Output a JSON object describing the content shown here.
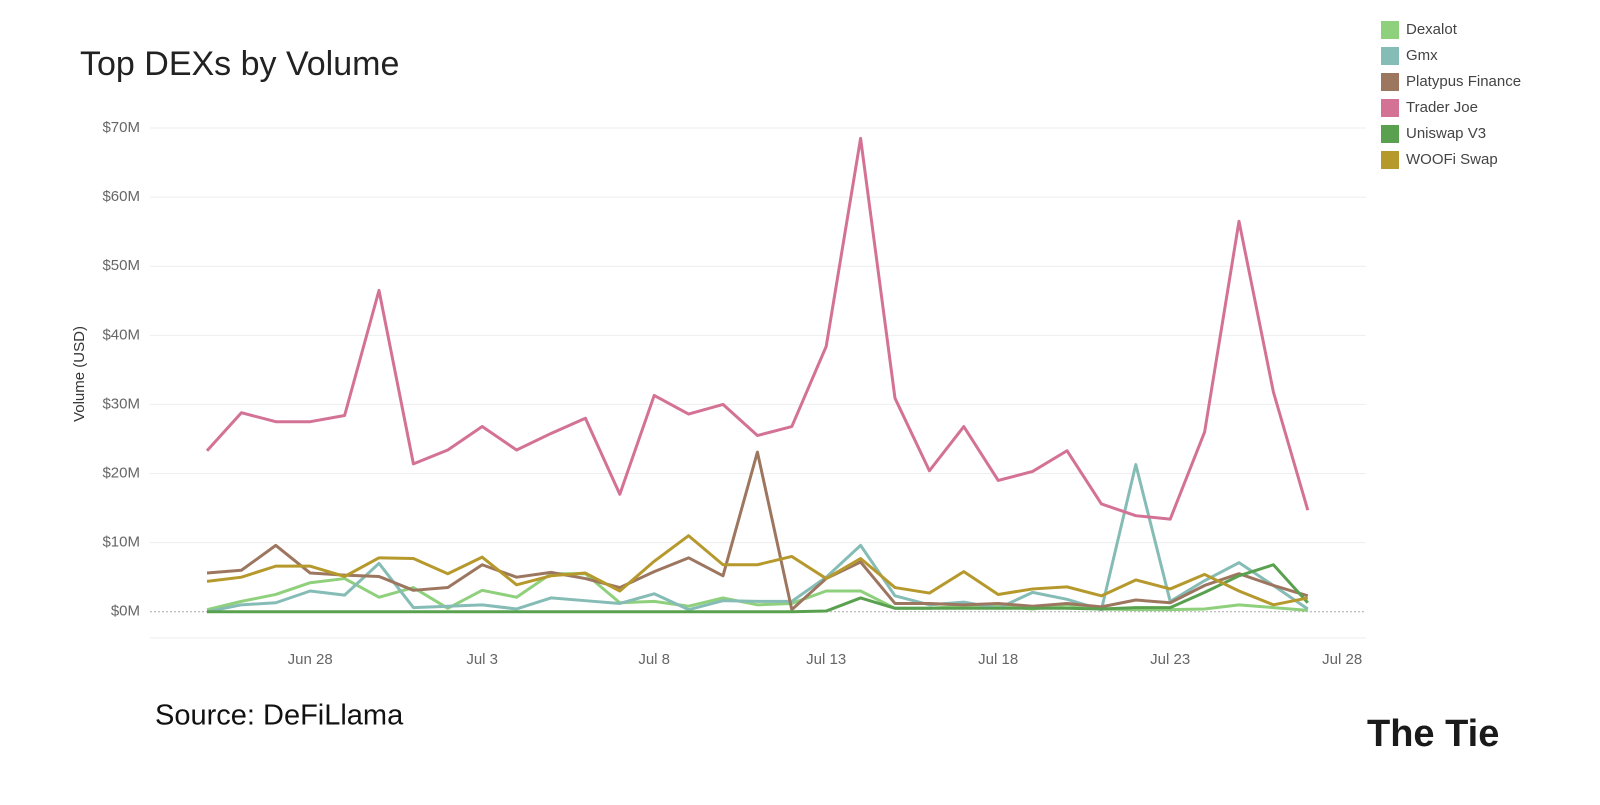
{
  "chart_data": {
    "type": "line",
    "title": "Top DEXs by Volume",
    "y_label": "Volume (USD)",
    "source": "Source: DeFiLlama",
    "brand": "The Tie",
    "categories": [
      null,
      null,
      null,
      "Jun 28",
      null,
      null,
      null,
      null,
      "Jul 3",
      null,
      null,
      null,
      null,
      "Jul 8",
      null,
      null,
      null,
      null,
      "Jul 13",
      null,
      null,
      null,
      null,
      "Jul 18",
      null,
      null,
      null,
      null,
      "Jul 23",
      null,
      null,
      null,
      null,
      "Jul 28"
    ],
    "series": [
      {
        "name": "Dexalot",
        "color": "#8fd07c",
        "values": [
          0.3,
          1.5,
          2.5,
          4.2,
          4.8,
          2.1,
          3.5,
          0.5,
          3.1,
          2.1,
          5.5,
          5.5,
          1.3,
          1.5,
          0.8,
          2,
          1,
          1.2,
          3,
          3,
          0.5,
          0.5,
          0.8,
          0.8,
          0.4,
          1,
          0.4,
          0.3,
          0.3,
          0.4,
          1,
          0.6,
          0.2,
          null
        ]
      },
      {
        "name": "Gmx",
        "color": "#86bcb6",
        "values": [
          0,
          1,
          1.3,
          3,
          2.4,
          7,
          0.6,
          0.8,
          1,
          0.4,
          2,
          1.6,
          1.2,
          2.6,
          0.3,
          1.6,
          1.5,
          1.5,
          5,
          9.6,
          2.3,
          1,
          1.4,
          0.5,
          2.8,
          1.8,
          0.3,
          21.3,
          1.5,
          4.5,
          7.1,
          3.8,
          0.4,
          null
        ]
      },
      {
        "name": "Platypus Finance",
        "color": "#9d7660",
        "values": [
          5.6,
          6,
          9.6,
          5.6,
          5.3,
          5.1,
          3.1,
          3.5,
          6.8,
          5,
          5.7,
          4.8,
          3.5,
          5.8,
          7.8,
          5.2,
          23.1,
          0.3,
          4.8,
          7.2,
          1.2,
          1.2,
          1,
          1.2,
          0.8,
          1.2,
          0.7,
          1.7,
          1.3,
          3.8,
          5.5,
          3.8,
          2.3,
          null
        ]
      },
      {
        "name": "Trader Joe",
        "color": "#d37295",
        "values": [
          23.3,
          28.8,
          27.5,
          27.5,
          28.4,
          46.5,
          21.4,
          23.4,
          26.8,
          23.4,
          25.8,
          28,
          17,
          31.3,
          28.6,
          30,
          25.5,
          26.8,
          38.4,
          68.5,
          30.9,
          20.4,
          26.8,
          19,
          20.3,
          23.3,
          15.6,
          13.9,
          13.4,
          26,
          56.5,
          31.8,
          14.7,
          null
        ]
      },
      {
        "name": "Uniswap V3",
        "color": "#59a14f",
        "values": [
          0,
          0,
          0,
          0,
          0,
          0,
          0,
          0,
          0,
          0,
          0,
          0,
          0,
          0,
          0,
          0,
          0,
          0,
          0.1,
          2,
          0.5,
          0.5,
          0.5,
          0.5,
          0.5,
          0.5,
          0.4,
          0.6,
          0.6,
          2.8,
          5.2,
          6.8,
          1.3,
          null
        ]
      },
      {
        "name": "WOOFi Swap",
        "color": "#b6992d",
        "values": [
          4.4,
          5,
          6.6,
          6.6,
          5.1,
          7.8,
          7.7,
          5.5,
          7.9,
          3.9,
          5.2,
          5.6,
          3,
          7.3,
          11,
          6.8,
          6.8,
          8,
          4.8,
          7.7,
          3.5,
          2.7,
          5.8,
          2.5,
          3.3,
          3.6,
          2.3,
          4.6,
          3.3,
          5.4,
          3,
          1,
          2,
          null
        ]
      }
    ],
    "ylim": [
      -3.8,
      70
    ],
    "yticks": [
      {
        "value": 0,
        "label": "$0M"
      },
      {
        "value": 10,
        "label": "$10M"
      },
      {
        "value": 20,
        "label": "$20M"
      },
      {
        "value": 30,
        "label": "$30M"
      },
      {
        "value": 40,
        "label": "$40M"
      },
      {
        "value": 50,
        "label": "$50M"
      },
      {
        "value": 60,
        "label": "$60M"
      },
      {
        "value": 70,
        "label": "$70M"
      }
    ],
    "grid": true,
    "legend": "top-right"
  }
}
